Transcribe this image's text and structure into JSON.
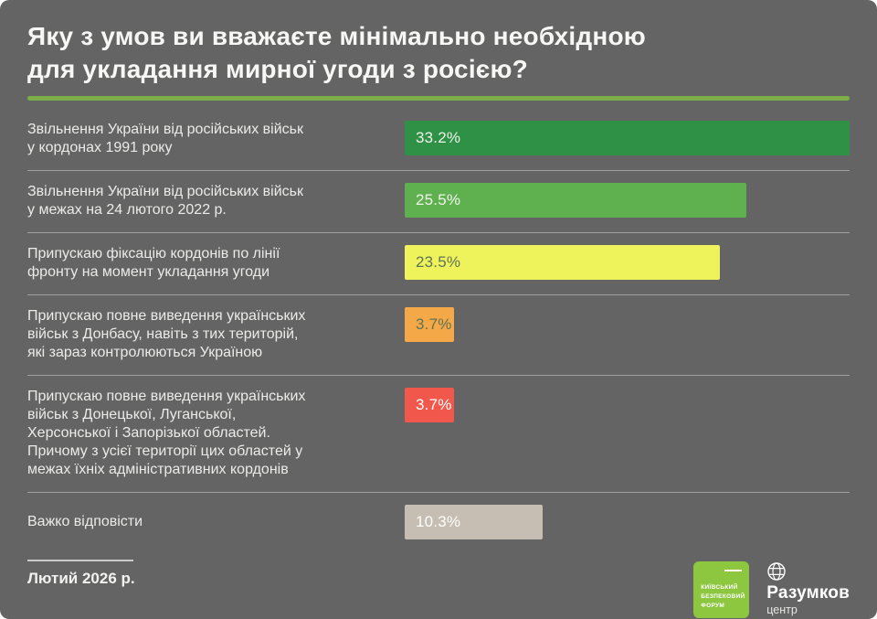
{
  "title": {
    "text": "Яку з умов ви вважаєте мінімально необхідною\nдля укладання мирної угоди з росією?"
  },
  "chart_data": {
    "type": "bar",
    "orientation": "horizontal",
    "title": "Яку з умов ви вважаєте мінімально необхідною для укладання мирної угоди з росією?",
    "categories": [
      "Звільнення України від російських військ\nу кордонах 1991 року",
      "Звільнення України від російських військ\nу межах на 24 лютого 2022 р.",
      "Припускаю фіксацію кордонів по лінії\nфронту на момент укладання угоди",
      "Припускаю повне виведення українських\nвійськ з Донбасу, навіть з тих територій,\nякі зараз контролюються Україною",
      "Припускаю повне виведення українських\nвійськ з Донецької, Луганської,\nХерсонської і Запорізької областей.\nПричому з усієї території цих областей у\nмежах їхніх адміністративних кордонів",
      "Важко відповісти"
    ],
    "values": [
      33.2,
      25.5,
      23.5,
      3.7,
      3.7,
      10.3
    ],
    "value_labels": [
      "33.2%",
      "25.5%",
      "23.5%",
      "3.7%",
      "3.7%",
      "10.3%"
    ],
    "bar_colors": [
      "#2e9145",
      "#5fb04e",
      "#eef35c",
      "#f5a847",
      "#f2574c",
      "#c6beb3"
    ],
    "value_text_colors": [
      "#eef3ea",
      "#f0f5ec",
      "#5f7355",
      "#5f7355",
      "#ffffff",
      "#fdfdfb"
    ],
    "xlim": [
      0,
      33.2
    ],
    "grid": false,
    "legend": null
  },
  "footer": {
    "date": "Лютий 2026 р.",
    "ksf_logo_text": "КИЇВСЬКИЙ\nБЕЗПЕКОВИЙ\nФОРУМ",
    "razumkov_name": "Разумков",
    "razumkov_sub": "центр"
  },
  "colors": {
    "background": "#646464",
    "title_text": "#f7f7f5",
    "label_text": "#ebebe9",
    "accent_rule": "#7dae4a",
    "divider": "#9c9c9c",
    "ksf_green": "#8dc63f"
  }
}
